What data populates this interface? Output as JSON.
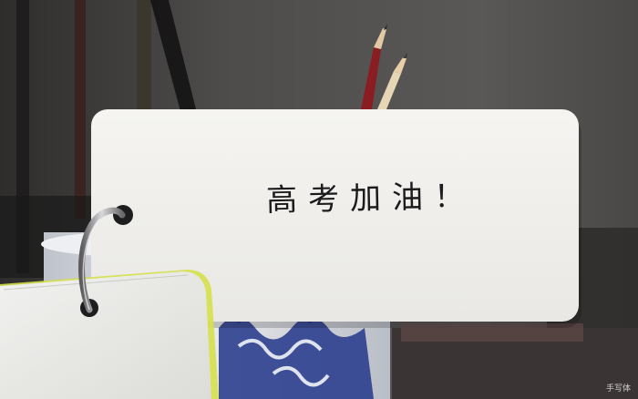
{
  "card": {
    "message": "高考加油！"
  },
  "watermark": {
    "text": "手写体"
  },
  "colors": {
    "wall": "#4a4847",
    "card": "#f3f2ef",
    "ink": "#1c1b1d",
    "pencil_red": "#8a1d22",
    "porcelain_blue": "#2c3f8f"
  }
}
